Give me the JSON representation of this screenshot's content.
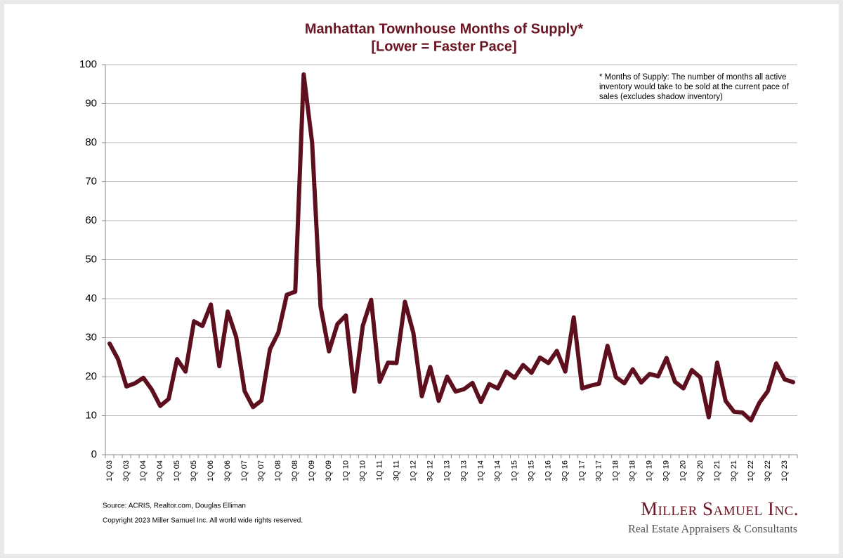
{
  "chart_data": {
    "type": "line",
    "title": "Manhattan Townhouse Months of Supply*",
    "subtitle": "[Lower = Faster Pace]",
    "annotation": [
      "* Months of Supply: The number of months all active",
      "inventory would take to be sold at the current pace of",
      "sales (excludes shadow inventory)"
    ],
    "source": "Source: ACRIS, Realtor.com, Douglas Elliman",
    "copyright": "Copyright 2023 Miller Samuel Inc.  All world wide rights reserved.",
    "brand": "Miller Samuel Inc.",
    "tagline": "Real Estate Appraisers & Consultants",
    "categories": [
      "1Q 03",
      null,
      "3Q 03",
      null,
      "1Q 04",
      null,
      "3Q 04",
      null,
      "1Q 05",
      null,
      "3Q 05",
      null,
      "1Q 06",
      null,
      "3Q 06",
      null,
      "1Q 07",
      null,
      "3Q 07",
      null,
      "1Q 08",
      null,
      "3Q 08",
      null,
      "1Q 09",
      null,
      "3Q 09",
      null,
      "1Q 10",
      null,
      "3Q 10",
      null,
      "1Q 11",
      null,
      "3Q 11",
      null,
      "1Q 12",
      null,
      "3Q 12",
      null,
      "1Q 13",
      null,
      "3Q 13",
      null,
      "1Q 14",
      null,
      "3Q 14",
      null,
      "1Q 15",
      null,
      "3Q 15",
      null,
      "1Q 16",
      null,
      "3Q 16",
      null,
      "1Q 17",
      null,
      "3Q 17",
      null,
      "1Q 18",
      null,
      "3Q 18",
      null,
      "1Q 19",
      null,
      "3Q 19",
      null,
      "1Q 20",
      null,
      "3Q 20",
      null,
      "1Q 21",
      null,
      "3Q 21",
      null,
      "1Q 22",
      null,
      "3Q 22",
      null,
      "1Q 23",
      null
    ],
    "values": [
      28.5,
      24.5,
      17.5,
      18.3,
      19.7,
      16.7,
      12.5,
      14.3,
      24.5,
      21.3,
      34.2,
      33.0,
      38.5,
      22.7,
      36.7,
      30.2,
      16.3,
      12.2,
      13.9,
      27.0,
      31.3,
      41.0,
      41.8,
      97.5,
      80.0,
      38.0,
      26.5,
      33.5,
      35.7,
      16.2,
      33.0,
      39.7,
      18.7,
      23.6,
      23.5,
      39.2,
      31.2,
      15.0,
      22.5,
      13.8,
      20.0,
      16.2,
      16.8,
      18.4,
      13.5,
      18.1,
      17.0,
      21.3,
      19.7,
      23.0,
      21.0,
      24.9,
      23.5,
      26.6,
      21.3,
      35.2,
      17.0,
      17.7,
      18.2,
      27.9,
      19.9,
      18.3,
      21.9,
      18.5,
      20.7,
      20.1,
      24.8,
      18.7,
      17.0,
      21.7,
      19.8,
      9.6,
      23.6,
      13.8,
      11.0,
      10.8,
      8.8,
      13.3,
      16.3,
      23.4,
      19.3,
      18.6
    ],
    "color": "#5e0f1e",
    "ylim": [
      0,
      100
    ],
    "yticks": [
      0,
      10,
      20,
      30,
      40,
      50,
      60,
      70,
      80,
      90,
      100
    ],
    "grid": true
  }
}
